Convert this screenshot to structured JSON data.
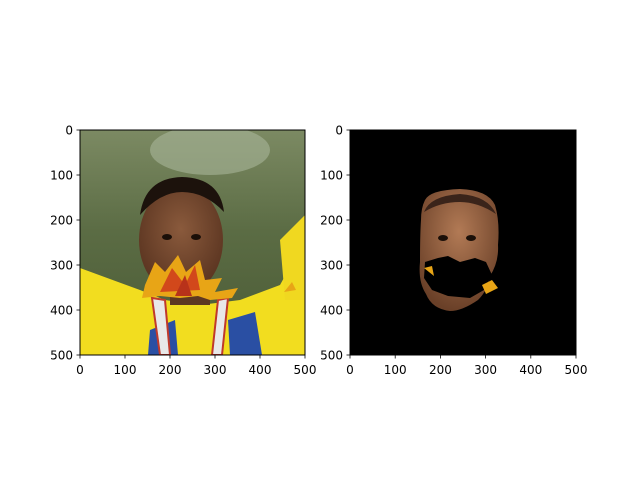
{
  "chart_data": [
    {
      "type": "image",
      "content": "photo of a smiling man in a yellow and blue jersey wearing a medal, arms raised, with autumn maple leaves overlaid across his lower face",
      "xlim": [
        0,
        500
      ],
      "ylim": [
        500,
        0
      ],
      "xticks": [
        "0",
        "100",
        "200",
        "300",
        "400",
        "500"
      ],
      "yticks": [
        "0",
        "100",
        "200",
        "300",
        "400",
        "500"
      ],
      "xlabel": "",
      "ylabel": "",
      "title": ""
    },
    {
      "type": "image",
      "content": "segmentation mask: only the face region is visible on a black background, with a black hole where the leaves cover the mouth",
      "xlim": [
        0,
        500
      ],
      "ylim": [
        500,
        0
      ],
      "xticks": [
        "0",
        "100",
        "200",
        "300",
        "400",
        "500"
      ],
      "yticks": [
        "0",
        "100",
        "200",
        "300",
        "400",
        "500"
      ],
      "xlabel": "",
      "ylabel": "",
      "title": ""
    }
  ]
}
